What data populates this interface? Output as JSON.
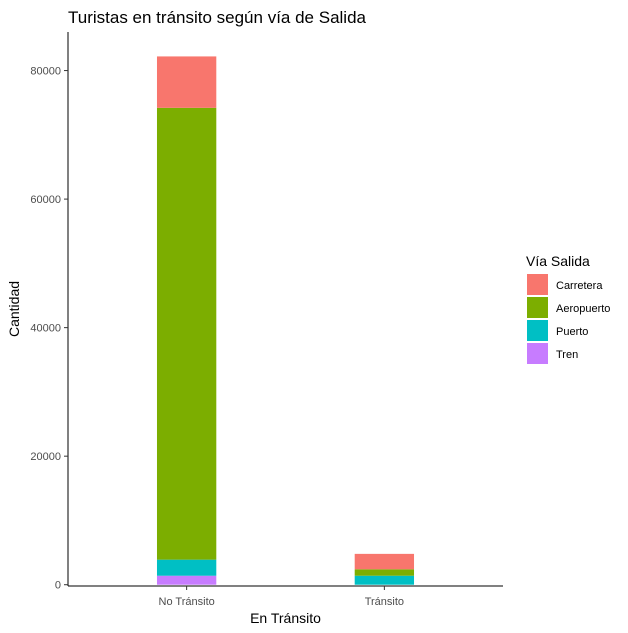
{
  "chart_data": {
    "type": "bar",
    "stacked": true,
    "title": "Turistas en tránsito según vía de Salida",
    "xlabel": "En Tránsito",
    "ylabel": "Cantidad",
    "categories": [
      "No Tránsito",
      "Tránsito"
    ],
    "ylim": [
      -200,
      86000
    ],
    "yticks": [
      0,
      20000,
      40000,
      60000,
      80000
    ],
    "ytick_labels": [
      "0",
      "20000",
      "40000",
      "60000",
      "80000"
    ],
    "grid": false,
    "legend": {
      "title": "Vía Salida",
      "position": "right"
    },
    "series": [
      {
        "name": "Carretera",
        "color": "#F8766D",
        "values": [
          8000,
          2400
        ]
      },
      {
        "name": "Aeropuerto",
        "color": "#7CAE00",
        "values": [
          70300,
          1000
        ]
      },
      {
        "name": "Puerto",
        "color": "#00BFC4",
        "values": [
          2500,
          1400
        ]
      },
      {
        "name": "Tren",
        "color": "#C77CFF",
        "values": [
          1400,
          0
        ]
      }
    ]
  }
}
